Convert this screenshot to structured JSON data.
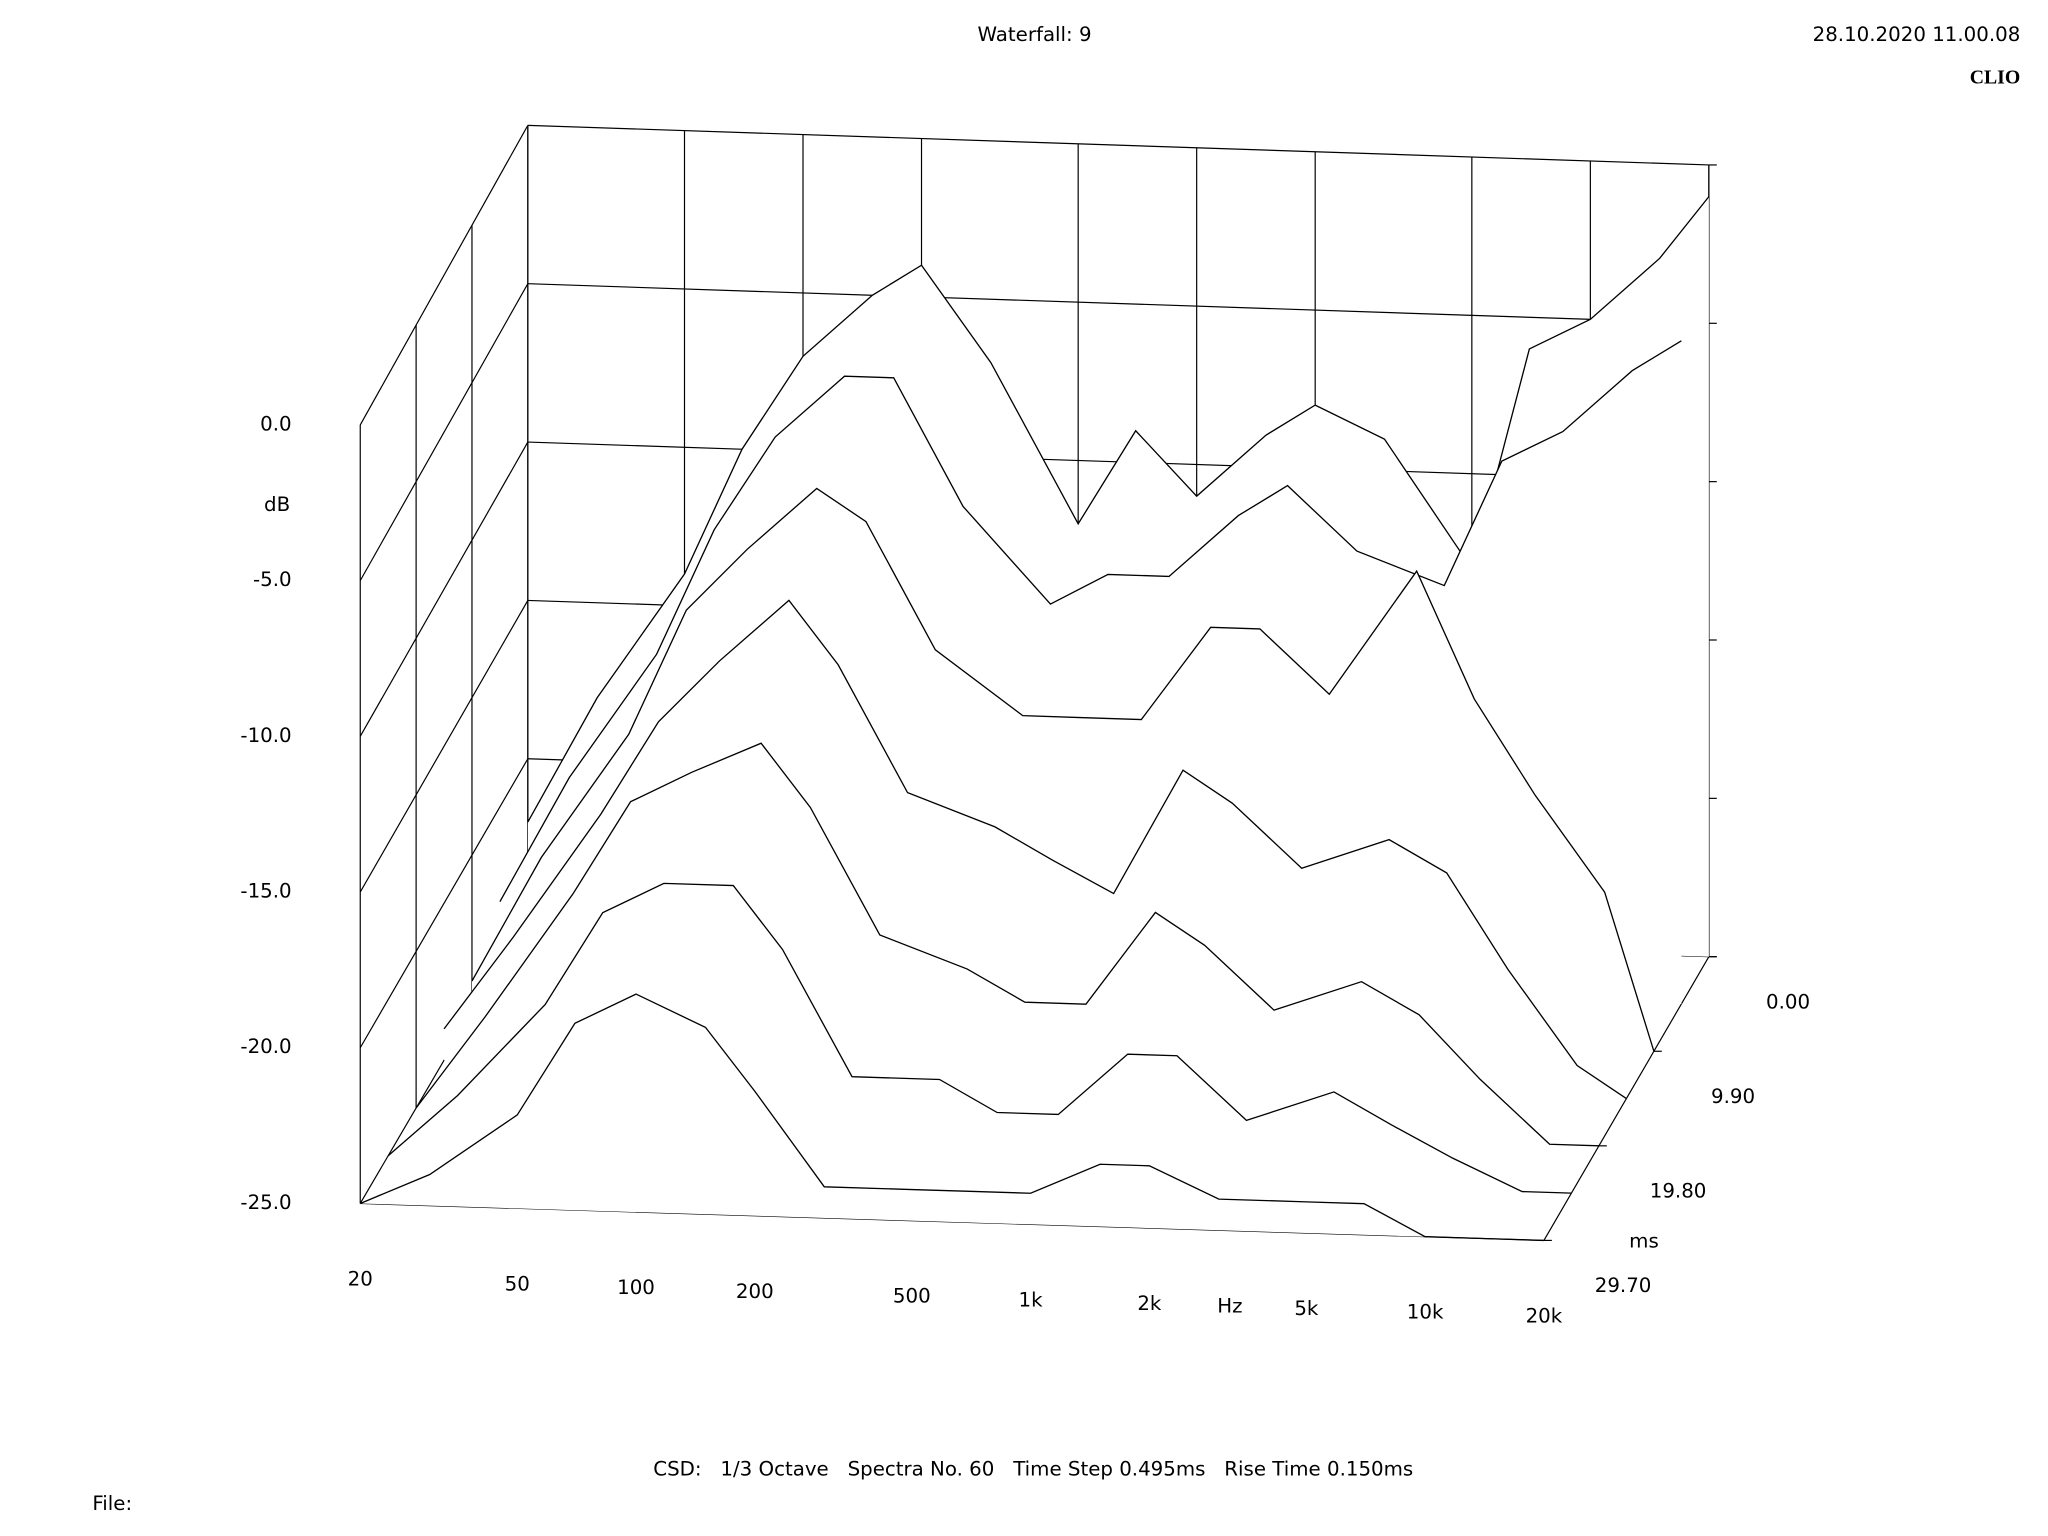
{
  "chart_data": {
    "type": "waterfall",
    "title": "Waterfall: 9",
    "timestamp": "28.10.2020 11.00.08",
    "brand": "CLIO",
    "footer": "CSD:   1/3 Octave   Spectra No. 60   Time Step 0.495ms   Rise Time 0.150ms",
    "file_label": "File:",
    "x_label": "Hz",
    "y_label": "dB",
    "z_label": "ms",
    "log_x": true,
    "line_color": "#000000",
    "xlim": [
      20,
      20000
    ],
    "xticks": [
      20,
      50,
      100,
      200,
      500,
      {
        "value": 1000,
        "label": "1k"
      },
      {
        "value": 2000,
        "label": "2k"
      },
      {
        "value": 5000,
        "label": "5k"
      },
      {
        "value": 10000,
        "label": "10k"
      },
      {
        "value": 20000,
        "label": "20k"
      }
    ],
    "ylim": [
      -25,
      0
    ],
    "yticks": [
      {
        "value": 0,
        "label": "0.0"
      },
      {
        "value": -5,
        "label": "-5.0"
      },
      {
        "value": -10,
        "label": "-10.0"
      },
      {
        "value": -15,
        "label": "-15.0"
      },
      {
        "value": -20,
        "label": "-20.0"
      },
      {
        "value": -25,
        "label": "-25.0"
      }
    ],
    "zlim": [
      0,
      29.7
    ],
    "zticks": [
      {
        "value": 0,
        "label": "0.00"
      },
      {
        "value": 9.9,
        "label": "9.90"
      },
      {
        "value": 19.8,
        "label": "19.80"
      },
      {
        "value": 29.7,
        "label": "29.70"
      }
    ],
    "x": [
      20,
      30,
      50,
      70,
      100,
      150,
      200,
      300,
      500,
      700,
      1000,
      1500,
      2000,
      3000,
      5000,
      7000,
      10000,
      15000,
      20000
    ],
    "z": [
      0,
      4.95,
      9.9,
      14.85,
      19.8,
      24.75,
      29.7
    ],
    "series": [
      {
        "values": [
          -22,
          -18,
          -14,
          -10,
          -7,
          -5,
          -4,
          -7,
          -12,
          -9,
          -11,
          -9,
          -8,
          -9,
          -13,
          -6,
          -5,
          -3,
          -1
        ]
      },
      {
        "values": [
          -23,
          -19,
          -15,
          -11,
          -8,
          -6,
          -6,
          -10,
          -13,
          -12,
          -12,
          -10,
          -9,
          -11,
          -12,
          -8,
          -7,
          -5,
          -4
        ]
      },
      {
        "values": [
          -24,
          -20,
          -16,
          -12,
          -10,
          -8,
          -9,
          -13,
          -15,
          -15,
          -15,
          -12,
          -12,
          -14,
          -10,
          -14,
          -17,
          -20,
          -25
        ]
      },
      {
        "values": [
          -24,
          -21,
          -17,
          -14,
          -12,
          -10,
          -12,
          -16,
          -17,
          -18,
          -19,
          -15,
          -16,
          -18,
          -17,
          -18,
          -21,
          -24,
          -25
        ]
      },
      {
        "values": [
          -25,
          -22,
          -18,
          -15,
          -14,
          -13,
          -15,
          -19,
          -20,
          -21,
          -21,
          -18,
          -19,
          -21,
          -20,
          -21,
          -23,
          -25,
          -25
        ]
      },
      {
        "values": [
          -25,
          -23,
          -20,
          -17,
          -16,
          -16,
          -18,
          -22,
          -22,
          -23,
          -23,
          -21,
          -21,
          -23,
          -22,
          -23,
          -24,
          -25,
          -25
        ]
      },
      {
        "values": [
          -25,
          -24,
          -22,
          -19,
          -18,
          -19,
          -21,
          -24,
          -24,
          -24,
          -24,
          -23,
          -23,
          -24,
          -24,
          -24,
          -25,
          -25,
          -25
        ]
      }
    ]
  }
}
